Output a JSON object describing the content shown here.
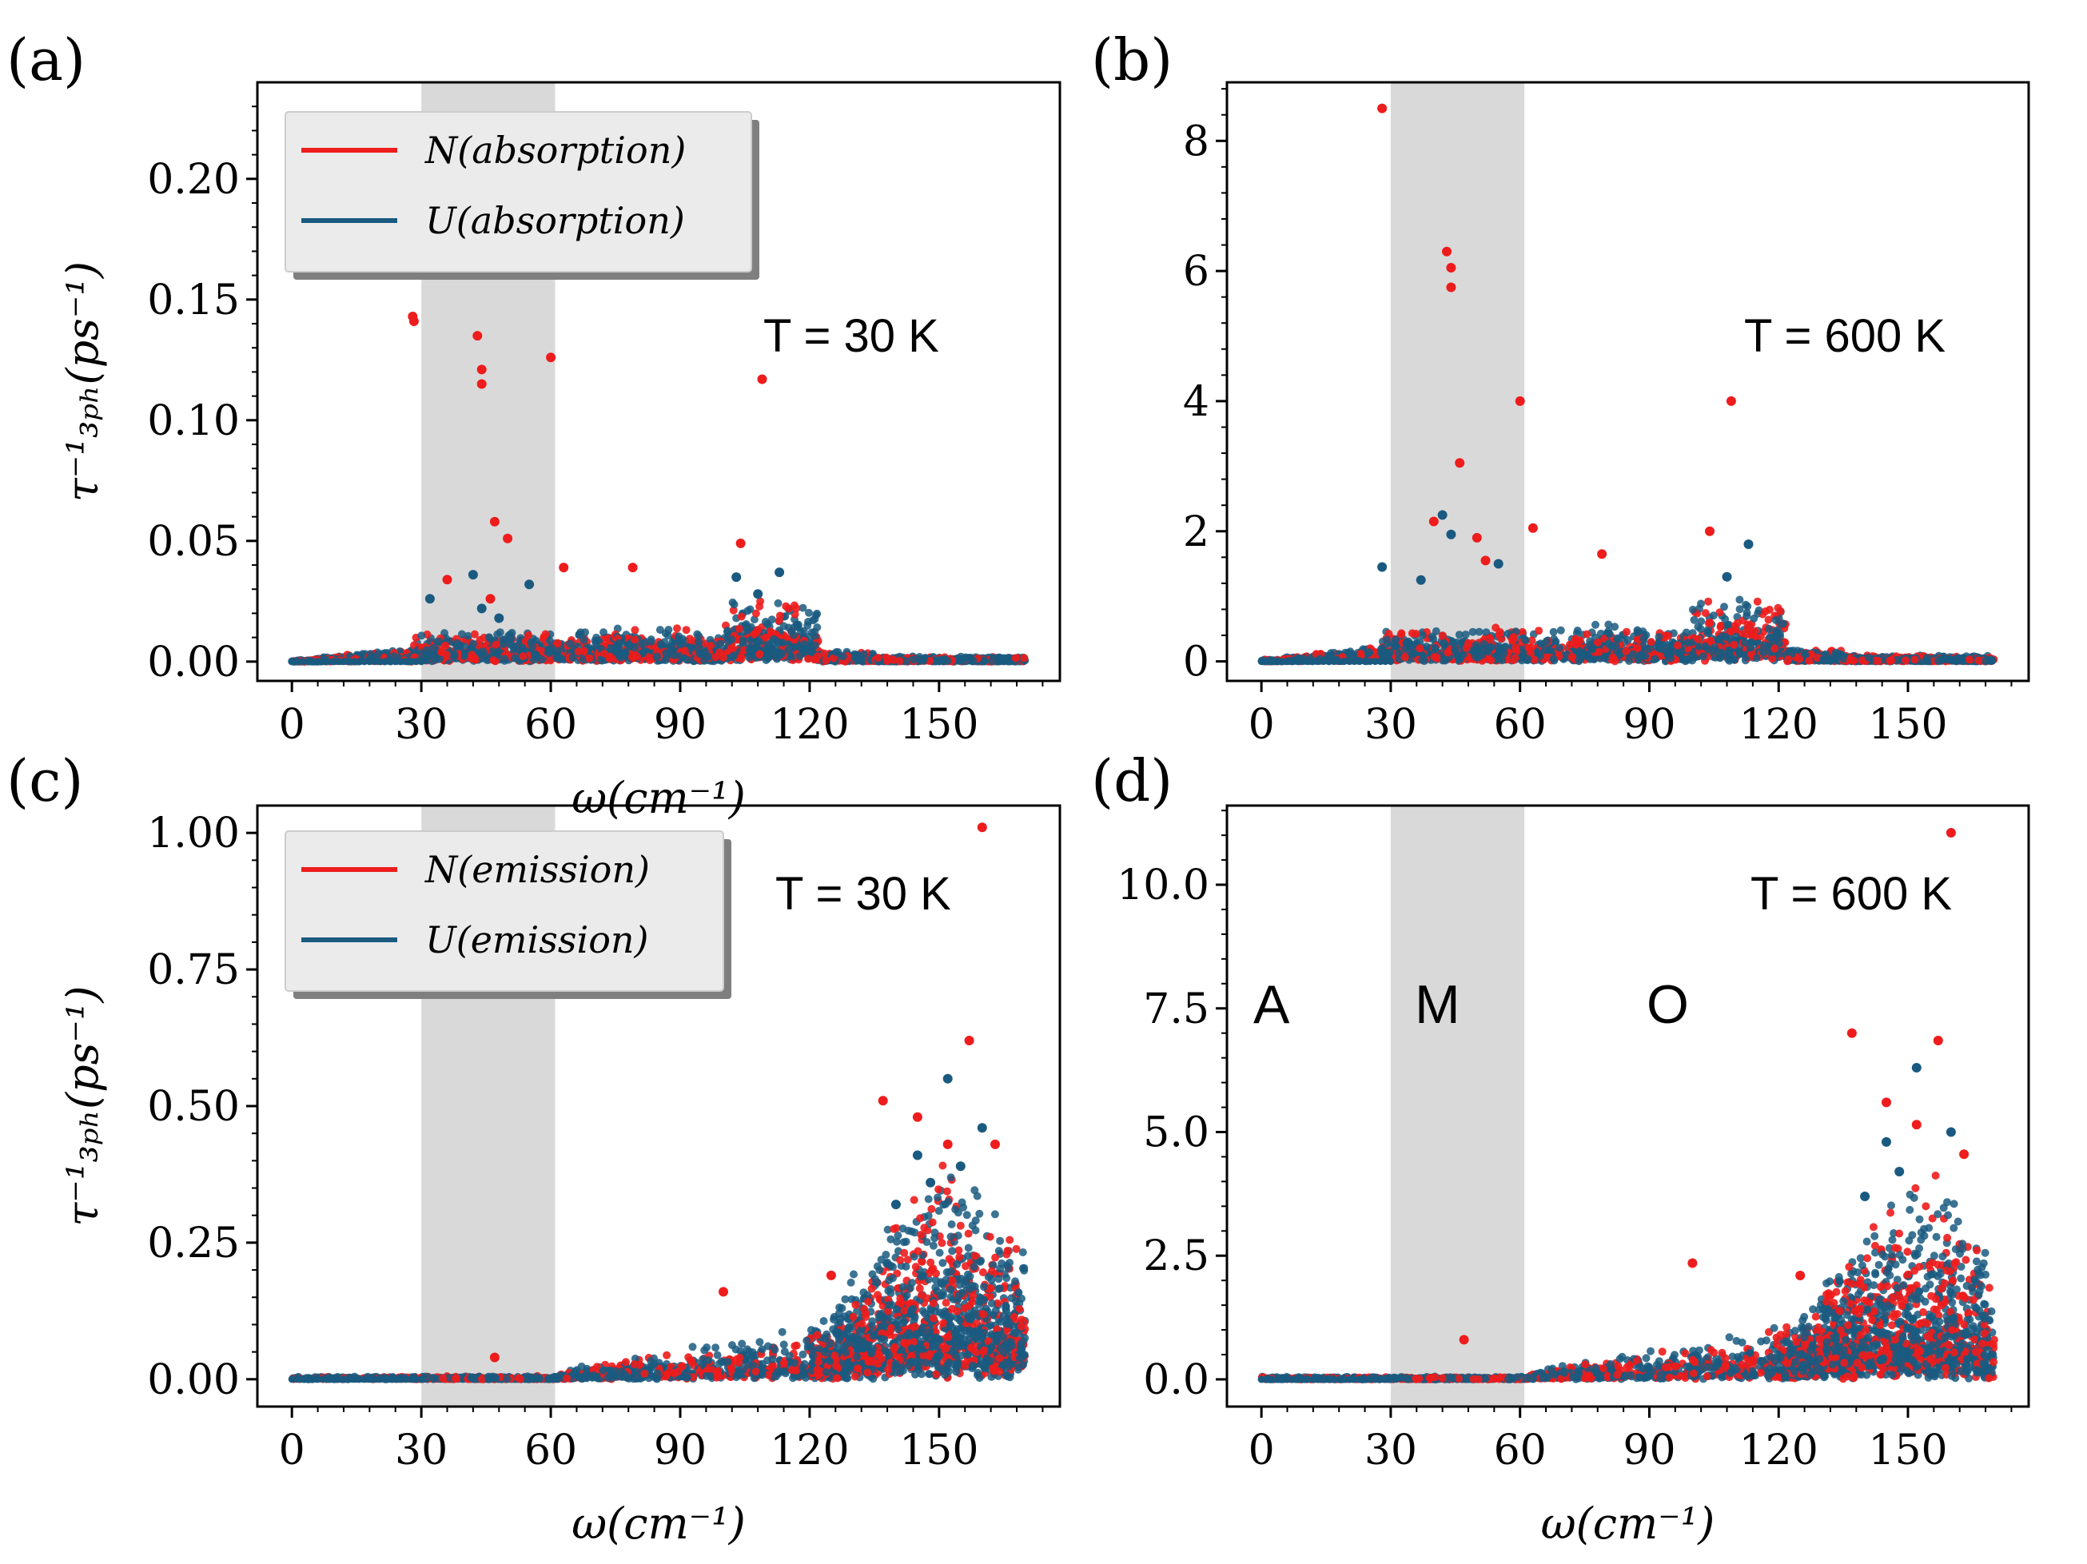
{
  "chart_data": [
    {
      "type": "scatter",
      "panel": "(a)",
      "process": "absorption",
      "temperature_label": "T = 30 K",
      "xlabel": "ω(cm⁻¹)",
      "ylabel": "τ⁻¹₃ₚₕ(ps⁻¹)",
      "xlim": [
        -8,
        178
      ],
      "ylim": [
        -0.008,
        0.24
      ],
      "xticks": [
        0,
        30,
        60,
        90,
        120,
        150
      ],
      "xtick_labels": [
        "0",
        "30",
        "60",
        "90",
        "120",
        "150"
      ],
      "yticks": [
        0,
        0.05,
        0.1,
        0.15,
        0.2
      ],
      "ytick_labels": [
        "0.00",
        "0.05",
        "0.10",
        "0.15",
        "0.20"
      ],
      "shaded_region": [
        30,
        61
      ],
      "legend": [
        "N(absorption)",
        "U(absorption)"
      ],
      "series": [
        {
          "name": "N(absorption)",
          "color": "#ee1c1c",
          "highlight_points": [
            [
              28,
              0.143
            ],
            [
              28.3,
              0.141
            ],
            [
              43,
              0.135
            ],
            [
              44,
              0.121
            ],
            [
              44,
              0.115
            ],
            [
              47,
              0.058
            ],
            [
              50,
              0.051
            ],
            [
              60,
              0.126
            ],
            [
              36,
              0.034
            ],
            [
              109,
              0.117
            ],
            [
              104,
              0.049
            ],
            [
              63,
              0.039
            ],
            [
              79,
              0.039
            ],
            [
              46,
              0.026
            ]
          ]
        },
        {
          "name": "U(absorption)",
          "color": "#1a5a80",
          "highlight_points": [
            [
              32,
              0.026
            ],
            [
              42,
              0.036
            ],
            [
              44,
              0.022
            ],
            [
              48,
              0.018
            ],
            [
              55,
              0.032
            ],
            [
              103,
              0.035
            ],
            [
              113,
              0.037
            ],
            [
              108,
              0.028
            ]
          ]
        }
      ]
    },
    {
      "type": "scatter",
      "panel": "(b)",
      "process": "absorption",
      "temperature_label": "T = 600 K",
      "xlabel": "",
      "ylabel": "",
      "xlim": [
        -8,
        178
      ],
      "ylim": [
        -0.3,
        8.9
      ],
      "xticks": [
        0,
        30,
        60,
        90,
        120,
        150
      ],
      "xtick_labels": [
        "0",
        "30",
        "60",
        "90",
        "120",
        "150"
      ],
      "yticks": [
        0,
        2,
        4,
        6,
        8
      ],
      "ytick_labels": [
        "0",
        "2",
        "4",
        "6",
        "8"
      ],
      "shaded_region": [
        30,
        61
      ],
      "series": [
        {
          "name": "N(absorption)",
          "color": "#ee1c1c",
          "highlight_points": [
            [
              28,
              8.5
            ],
            [
              43,
              6.3
            ],
            [
              44,
              6.05
            ],
            [
              44,
              5.75
            ],
            [
              60,
              4.0
            ],
            [
              46,
              3.05
            ],
            [
              40,
              2.15
            ],
            [
              50,
              1.9
            ],
            [
              52,
              1.55
            ],
            [
              109,
              4.0
            ],
            [
              104,
              2.0
            ],
            [
              63,
              2.05
            ],
            [
              79,
              1.65
            ]
          ]
        },
        {
          "name": "U(absorption)",
          "color": "#1a5a80",
          "highlight_points": [
            [
              28,
              1.45
            ],
            [
              42,
              2.25
            ],
            [
              44,
              1.95
            ],
            [
              37,
              1.25
            ],
            [
              55,
              1.5
            ],
            [
              113,
              1.8
            ],
            [
              108,
              1.3
            ]
          ]
        }
      ]
    },
    {
      "type": "scatter",
      "panel": "(c)",
      "process": "emission",
      "temperature_label": "T = 30 K",
      "xlabel": "ω(cm⁻¹)",
      "ylabel": "τ⁻¹₃ₚₕ(ps⁻¹)",
      "xlim": [
        -8,
        178
      ],
      "ylim": [
        -0.05,
        1.05
      ],
      "xticks": [
        0,
        30,
        60,
        90,
        120,
        150
      ],
      "xtick_labels": [
        "0",
        "30",
        "60",
        "90",
        "120",
        "150"
      ],
      "yticks": [
        0,
        0.25,
        0.5,
        0.75,
        1.0
      ],
      "ytick_labels": [
        "0.00",
        "0.25",
        "0.50",
        "0.75",
        "1.00"
      ],
      "shaded_region": [
        30,
        61
      ],
      "legend": [
        "N(emission)",
        "U(emission)"
      ],
      "series": [
        {
          "name": "N(emission)",
          "color": "#ee1c1c",
          "highlight_points": [
            [
              160,
              1.01
            ],
            [
              157,
              0.62
            ],
            [
              137,
              0.51
            ],
            [
              145,
              0.48
            ],
            [
              152,
              0.43
            ],
            [
              163,
              0.43
            ],
            [
              47,
              0.04
            ],
            [
              100,
              0.16
            ],
            [
              125,
              0.19
            ]
          ]
        },
        {
          "name": "U(emission)",
          "color": "#1a5a80",
          "highlight_points": [
            [
              152,
              0.55
            ],
            [
              145,
              0.41
            ],
            [
              160,
              0.46
            ],
            [
              148,
              0.36
            ],
            [
              140,
              0.32
            ],
            [
              155,
              0.39
            ]
          ]
        }
      ]
    },
    {
      "type": "scatter",
      "panel": "(d)",
      "process": "emission",
      "temperature_label": "T = 600 K",
      "xlabel": "ω(cm⁻¹)",
      "ylabel": "",
      "xlim": [
        -8,
        178
      ],
      "ylim": [
        -0.55,
        11.6
      ],
      "xticks": [
        0,
        30,
        60,
        90,
        120,
        150
      ],
      "xtick_labels": [
        "0",
        "30",
        "60",
        "90",
        "120",
        "150"
      ],
      "yticks": [
        0,
        2.5,
        5,
        7.5,
        10
      ],
      "ytick_labels": [
        "0.0",
        "2.5",
        "5.0",
        "7.5",
        "10.0"
      ],
      "shaded_region": [
        30,
        61
      ],
      "region_labels": [
        "A",
        "M",
        "O"
      ],
      "series": [
        {
          "name": "N(emission)",
          "color": "#ee1c1c",
          "highlight_points": [
            [
              160,
              11.05
            ],
            [
              137,
              7.0
            ],
            [
              157,
              6.85
            ],
            [
              145,
              5.6
            ],
            [
              152,
              5.15
            ],
            [
              163,
              4.55
            ],
            [
              47,
              0.8
            ],
            [
              100,
              2.35
            ],
            [
              125,
              2.1
            ]
          ]
        },
        {
          "name": "U(emission)",
          "color": "#1a5a80",
          "highlight_points": [
            [
              152,
              6.3
            ],
            [
              145,
              4.8
            ],
            [
              160,
              5.0
            ],
            [
              148,
              4.2
            ],
            [
              140,
              3.7
            ]
          ]
        }
      ]
    }
  ]
}
